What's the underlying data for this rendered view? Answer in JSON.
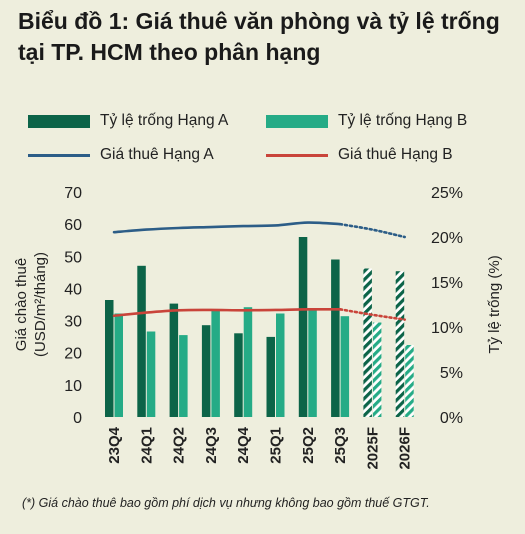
{
  "title": "Biểu đồ 1: Giá thuê văn phòng và tỷ lệ trống tại TP. HCM theo phân hạng",
  "footnote": "(*) Giá chào thuê bao gồm phí dịch vụ nhưng không bao gồm thuế GTGT.",
  "colors": {
    "bar_a": "#0c6448",
    "bar_b": "#25ab86",
    "line_a": "#2c5d87",
    "line_b": "#c9443a",
    "background": "#eeeedd"
  },
  "chart_data": {
    "type": "bar",
    "categories": [
      "23Q4",
      "24Q1",
      "24Q2",
      "24Q3",
      "24Q4",
      "25Q1",
      "25Q2",
      "25Q3",
      "2025F",
      "2026F"
    ],
    "forecast_categories": [
      "2025F",
      "2026F"
    ],
    "ylabel": "Giá chào thuê (USD/m²/tháng)",
    "y2label": "Tỷ lệ trống (%)",
    "ylim": [
      0,
      70
    ],
    "yticks": [
      "0",
      "10",
      "20",
      "30",
      "40",
      "50",
      "60",
      "70"
    ],
    "y2lim": [
      0,
      25
    ],
    "y2ticks": [
      "0%",
      "5%",
      "10%",
      "15%",
      "20%",
      "25%"
    ],
    "legend_position": "top",
    "grid": false,
    "series": [
      {
        "name": "Tỷ lệ trống Hạng A",
        "kind": "bar",
        "axis": "right",
        "values": [
          13.0,
          16.8,
          12.6,
          10.2,
          9.3,
          8.9,
          20.0,
          17.5,
          16.5,
          16.2
        ]
      },
      {
        "name": "Tỷ lệ trống Hạng B",
        "kind": "bar",
        "axis": "right",
        "values": [
          11.5,
          9.5,
          9.1,
          11.9,
          12.2,
          11.5,
          12.0,
          11.2,
          10.5,
          8.0
        ]
      },
      {
        "name": "Giá thuê Hạng A",
        "kind": "line",
        "axis": "left",
        "values": [
          57.5,
          58.3,
          58.8,
          59.1,
          59.4,
          59.6,
          60.5,
          60.0,
          58.3,
          56.0
        ]
      },
      {
        "name": "Giá thuê Hạng B",
        "kind": "line",
        "axis": "left",
        "values": [
          31.5,
          32.5,
          33.2,
          33.3,
          33.2,
          33.3,
          33.5,
          33.5,
          31.8,
          30.3
        ]
      }
    ]
  }
}
